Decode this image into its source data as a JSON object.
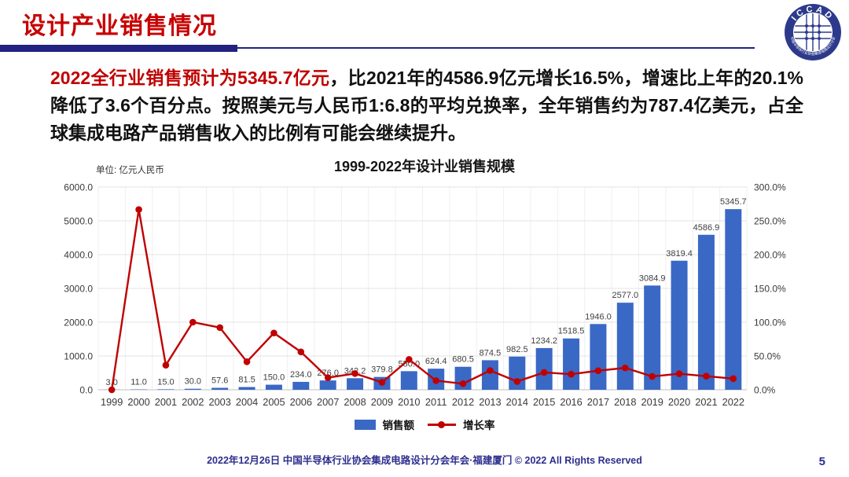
{
  "header": {
    "title": "设计产业销售情况"
  },
  "logo": {
    "ring_text": "ICCAD",
    "bottom_text": "中国半导体行业协会集成电路设计分会"
  },
  "paragraph": {
    "highlight": "2022全行业销售预计为5345.7亿元",
    "rest": "，比2021年的4586.9亿元增长16.5%，增速比上年的20.1%降低了3.6个百分点。按照美元与人民币1:6.8的平均兑换率，全年销售约为787.4亿美元，占全球集成电路产品销售收入的比例有可能会继续提升。"
  },
  "chart_data": {
    "type": "bar+line",
    "title": "1999-2022年设计业销售规模",
    "unit_label": "单位: 亿元人民币",
    "categories": [
      "1999",
      "2000",
      "2001",
      "2002",
      "2003",
      "2004",
      "2005",
      "2006",
      "2007",
      "2008",
      "2009",
      "2010",
      "2011",
      "2012",
      "2013",
      "2014",
      "2015",
      "2016",
      "2017",
      "2018",
      "2019",
      "2020",
      "2021",
      "2022"
    ],
    "series": [
      {
        "name": "销售额",
        "type": "bar",
        "axis": "left",
        "color": "#3a68c5",
        "values": [
          3.0,
          11.0,
          15.0,
          30.0,
          57.6,
          81.5,
          150.0,
          234.0,
          276.0,
          342.2,
          379.8,
          550.0,
          624.4,
          680.5,
          874.5,
          982.5,
          1234.2,
          1518.5,
          1946.0,
          2577.0,
          3084.9,
          3819.4,
          4586.9,
          5345.7
        ]
      },
      {
        "name": "增长率",
        "type": "line",
        "axis": "right",
        "color": "#c00000",
        "values_pct": [
          0.0,
          266.7,
          36.4,
          100.0,
          92.0,
          41.5,
          84.0,
          56.0,
          17.9,
          24.0,
          11.0,
          44.8,
          13.5,
          9.0,
          28.5,
          12.3,
          25.6,
          23.0,
          28.2,
          32.4,
          19.7,
          23.8,
          20.1,
          16.5
        ]
      }
    ],
    "left_axis": {
      "min": 0,
      "max": 6000,
      "step": 1000,
      "ticks": [
        "0.0",
        "1000.0",
        "2000.0",
        "3000.0",
        "4000.0",
        "5000.0",
        "6000.0"
      ]
    },
    "right_axis": {
      "min": 0,
      "max": 300,
      "step": 50,
      "ticks": [
        "0.0%",
        "50.0%",
        "100.0%",
        "150.0%",
        "200.0%",
        "250.0%",
        "300.0%"
      ]
    },
    "grid": true,
    "legend_position": "bottom",
    "bar_label_decimals": 1
  },
  "footer": {
    "text": "2022年12月26日 中国半导体行业协会集成电路设计分会年会·福建厦门 © 2022 All Rights Reserved",
    "page": "5"
  }
}
